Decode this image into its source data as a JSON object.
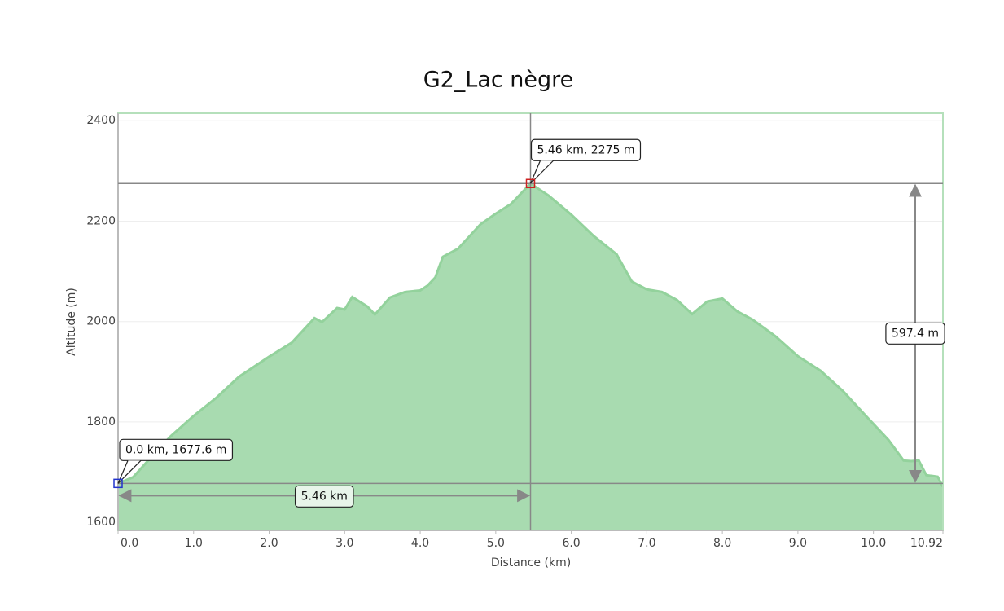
{
  "chart_data": {
    "type": "area",
    "title": "G2_Lac nègre",
    "x_label": "Distance   (km)",
    "y_label": "Altitude (m)",
    "x": [
      0,
      0.2,
      0.5,
      0.7,
      1.0,
      1.3,
      1.6,
      2.0,
      2.3,
      2.6,
      2.7,
      2.9,
      3.0,
      3.1,
      3.3,
      3.4,
      3.6,
      3.8,
      4.0,
      4.1,
      4.2,
      4.3,
      4.5,
      4.8,
      5.0,
      5.2,
      5.46,
      5.7,
      6.0,
      6.3,
      6.6,
      6.8,
      7.0,
      7.2,
      7.4,
      7.6,
      7.8,
      8.0,
      8.2,
      8.4,
      8.7,
      9.0,
      9.3,
      9.6,
      9.9,
      10.2,
      10.4,
      10.5,
      10.6,
      10.7,
      10.85,
      10.92
    ],
    "series": [
      {
        "name": "Altitude",
        "color": "#a8dbb0",
        "values": [
          1677.6,
          1690,
          1740,
          1772,
          1812,
          1848,
          1890,
          1930,
          1958,
          2007,
          1999,
          2027,
          2024,
          2049,
          2030,
          2014,
          2048,
          2059,
          2062,
          2072,
          2088,
          2129,
          2145,
          2194,
          2215,
          2234,
          2275,
          2251,
          2213,
          2170,
          2134,
          2080,
          2064,
          2059,
          2043,
          2015,
          2040,
          2046,
          2020,
          2004,
          1971,
          1931,
          1902,
          1861,
          1812,
          1764,
          1723,
          1722,
          1723,
          1694,
          1691,
          1671
        ]
      }
    ],
    "xlim": [
      0,
      10.92
    ],
    "ylim": [
      1584,
      2415
    ],
    "xticks": [
      {
        "value": 0,
        "label": "0.0"
      },
      {
        "value": 1,
        "label": "1.0"
      },
      {
        "value": 2,
        "label": "2.0"
      },
      {
        "value": 3,
        "label": "3.0"
      },
      {
        "value": 4,
        "label": "4.0"
      },
      {
        "value": 5,
        "label": "5.0"
      },
      {
        "value": 6,
        "label": "6.0"
      },
      {
        "value": 7,
        "label": "7.0"
      },
      {
        "value": 8,
        "label": "8.0"
      },
      {
        "value": 9,
        "label": "9.0"
      },
      {
        "value": 10,
        "label": "10.0"
      },
      10.92
    ],
    "yticks": [
      1600,
      1800,
      2000,
      2200,
      2400
    ],
    "grid": true,
    "markers": [
      {
        "x": 0,
        "y": 1677.6,
        "label": "0.0 km, 1677.6 m",
        "color": "#2233cc"
      },
      {
        "x": 5.46,
        "y": 2275,
        "label": "5.46 km, 2275 m",
        "color": "#cc2222"
      }
    ],
    "measures": {
      "horizontal": "5.46 km",
      "vertical": "597.4 m"
    }
  }
}
